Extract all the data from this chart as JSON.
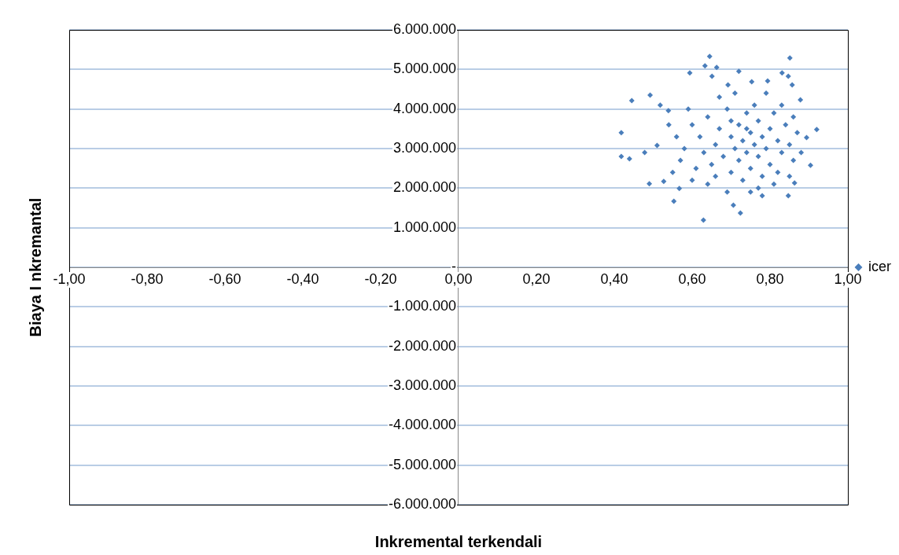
{
  "chart_data": {
    "type": "scatter",
    "xlabel": "Inkremental terkendali",
    "ylabel": "Biaya I nkremantal",
    "xlim": [
      -1,
      1
    ],
    "ylim": [
      -6000000,
      6000000
    ],
    "xticks": [
      {
        "value": -1,
        "label": "-1,00"
      },
      {
        "value": -0.8,
        "label": "-0,80"
      },
      {
        "value": -0.6,
        "label": "-0,60"
      },
      {
        "value": -0.4,
        "label": "-0,40"
      },
      {
        "value": -0.2,
        "label": "-0,20"
      },
      {
        "value": 0,
        "label": "0,00"
      },
      {
        "value": 0.2,
        "label": "0,20"
      },
      {
        "value": 0.4,
        "label": "0,40"
      },
      {
        "value": 0.6,
        "label": "0,60"
      },
      {
        "value": 0.8,
        "label": "0,80"
      },
      {
        "value": 1,
        "label": "1,00"
      }
    ],
    "yticks": [
      {
        "value": -6000000,
        "label": "-6.000.000"
      },
      {
        "value": -5000000,
        "label": "-5.000.000"
      },
      {
        "value": -4000000,
        "label": "-4.000.000"
      },
      {
        "value": -3000000,
        "label": "-3.000.000"
      },
      {
        "value": -2000000,
        "label": "-2.000.000"
      },
      {
        "value": -1000000,
        "label": "-1.000.000"
      },
      {
        "value": 0,
        "label": "-"
      },
      {
        "value": 1000000,
        "label": "1.000.000"
      },
      {
        "value": 2000000,
        "label": "2.000.000"
      },
      {
        "value": 3000000,
        "label": "3.000.000"
      },
      {
        "value": 4000000,
        "label": "4.000.000"
      },
      {
        "value": 5000000,
        "label": "5.000.000"
      },
      {
        "value": 6000000,
        "label": "6.000.000"
      }
    ],
    "grid": "y",
    "legend": "right",
    "marker": "diamond",
    "series": [
      {
        "name": "icer",
        "color": "#4a7ebb",
        "x": [
          0.645,
          0.851,
          0.633,
          0.663,
          0.594,
          0.72,
          0.445,
          0.492,
          0.418,
          0.418,
          0.439,
          0.478,
          0.49,
          0.553,
          0.629,
          0.724,
          0.706,
          0.847,
          0.92,
          0.904,
          0.894,
          0.878,
          0.857,
          0.831,
          0.863,
          0.527,
          0.51,
          0.567,
          0.78,
          0.539,
          0.518,
          0.753,
          0.794,
          0.692,
          0.651,
          0.847,
          0.6,
          0.62,
          0.63,
          0.61,
          0.64,
          0.65,
          0.66,
          0.67,
          0.68,
          0.69,
          0.7,
          0.7,
          0.71,
          0.72,
          0.72,
          0.73,
          0.73,
          0.74,
          0.74,
          0.75,
          0.75,
          0.76,
          0.76,
          0.77,
          0.77,
          0.78,
          0.78,
          0.79,
          0.8,
          0.8,
          0.81,
          0.82,
          0.82,
          0.83,
          0.84,
          0.85,
          0.86,
          0.87,
          0.88,
          0.58,
          0.57,
          0.59,
          0.56,
          0.6,
          0.64,
          0.67,
          0.71,
          0.79,
          0.83,
          0.86,
          0.85,
          0.69,
          0.75,
          0.81,
          0.55,
          0.54,
          0.7,
          0.77,
          0.66,
          0.74
        ],
        "values": [
          5330000,
          5290000,
          5090000,
          5050000,
          4910000,
          4950000,
          4210000,
          4350000,
          3400000,
          2800000,
          2740000,
          2900000,
          2110000,
          1670000,
          1190000,
          1370000,
          1570000,
          1810000,
          3480000,
          2580000,
          3280000,
          4230000,
          4610000,
          4910000,
          2130000,
          2170000,
          3080000,
          1990000,
          1810000,
          3960000,
          4100000,
          4690000,
          4710000,
          4610000,
          4830000,
          4830000,
          3600000,
          3300000,
          2900000,
          2500000,
          3800000,
          2600000,
          3100000,
          3500000,
          2800000,
          4000000,
          3300000,
          2400000,
          3000000,
          3600000,
          2700000,
          3200000,
          2200000,
          3900000,
          2900000,
          3400000,
          2500000,
          3100000,
          4100000,
          2800000,
          3700000,
          3300000,
          2300000,
          3000000,
          3500000,
          2600000,
          3900000,
          3200000,
          2400000,
          2900000,
          3600000,
          3100000,
          2700000,
          3400000,
          2900000,
          3000000,
          2700000,
          4000000,
          3300000,
          2200000,
          2100000,
          4300000,
          4400000,
          4400000,
          4100000,
          3800000,
          2300000,
          1900000,
          1900000,
          2100000,
          2400000,
          3600000,
          3700000,
          2000000,
          2300000,
          3500000
        ]
      }
    ]
  }
}
